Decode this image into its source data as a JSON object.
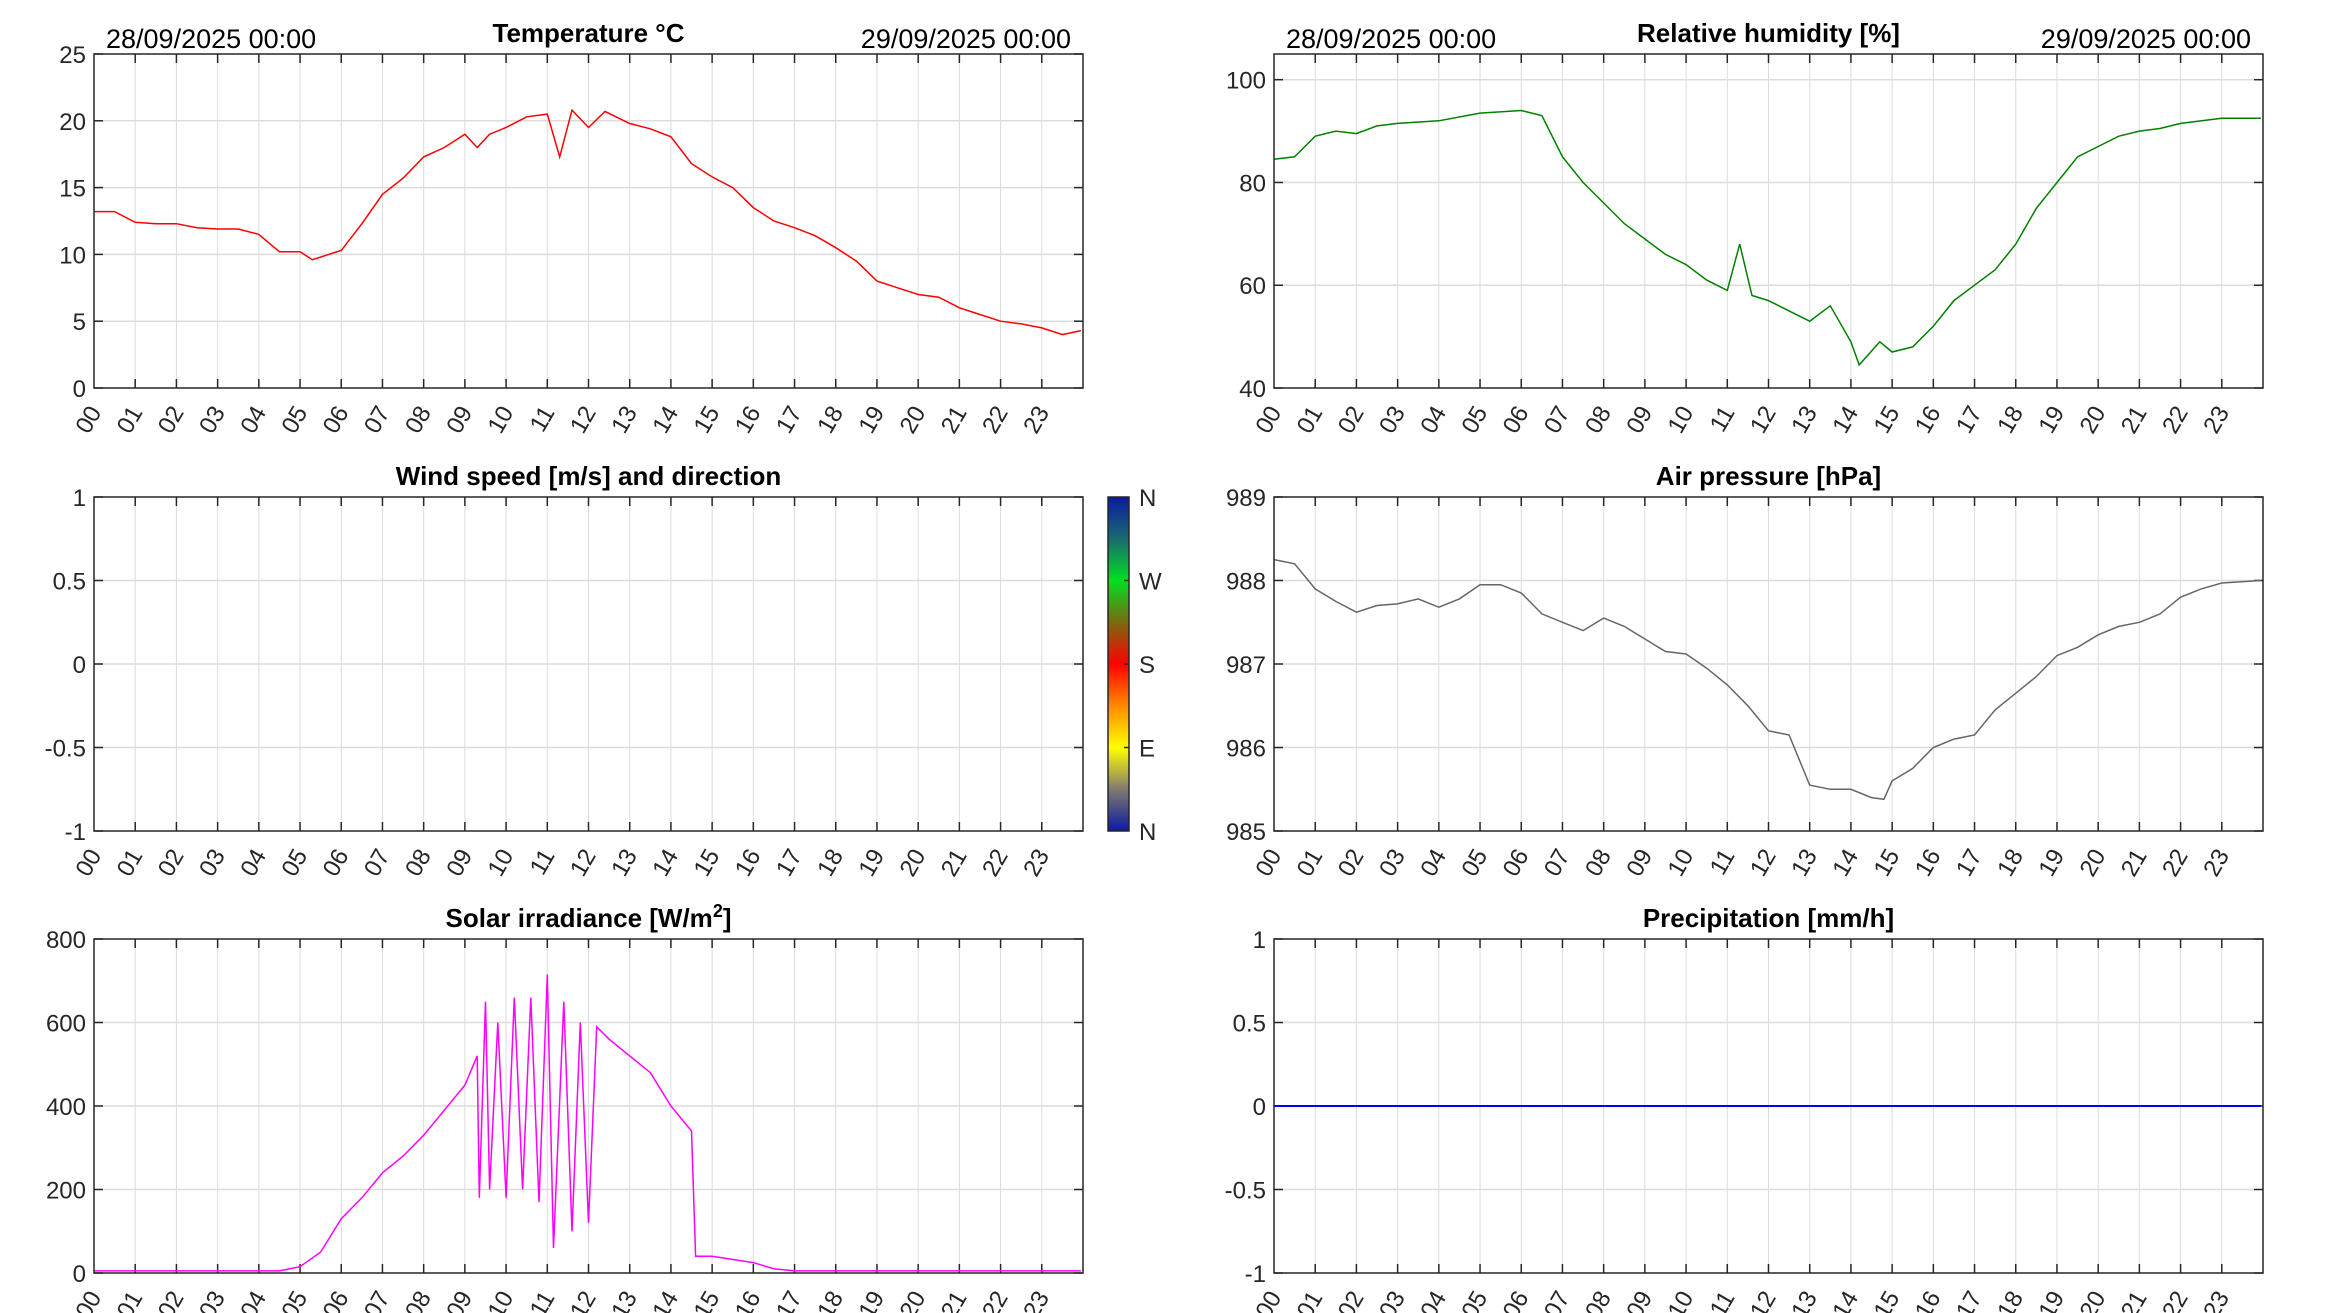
{
  "header": {
    "start_date": "28/09/2025 00:00",
    "end_date": "29/09/2025 00:00"
  },
  "hour_labels": [
    "00",
    "01",
    "02",
    "03",
    "04",
    "05",
    "06",
    "07",
    "08",
    "09",
    "10",
    "11",
    "12",
    "13",
    "14",
    "15",
    "16",
    "17",
    "18",
    "19",
    "20",
    "21",
    "22",
    "23"
  ],
  "colorbar": {
    "labels": [
      "N",
      "W",
      "S",
      "E",
      "N"
    ],
    "colors": [
      "#0a1aa0",
      "#1a6a70",
      "#00e020",
      "#7a6a10",
      "#ff0000",
      "#ff8800",
      "#ffff00",
      "#807a70",
      "#0a1aa0"
    ]
  },
  "chart_data": [
    {
      "id": "temperature",
      "type": "line",
      "title": "Temperature °C",
      "show_dates": true,
      "color": "#ff0000",
      "xlim": [
        0,
        24
      ],
      "ylim": [
        0,
        25
      ],
      "yticks": [
        0,
        5,
        10,
        15,
        20,
        25
      ],
      "ytick_labels": [
        "0",
        "5",
        "10",
        "15",
        "20",
        "25"
      ],
      "x": [
        0,
        0.5,
        1,
        1.5,
        2,
        2.5,
        3,
        3.5,
        4,
        4.5,
        5,
        5.3,
        6,
        6.5,
        7,
        7.5,
        8,
        8.5,
        9,
        9.3,
        9.6,
        10,
        10.5,
        11,
        11.3,
        11.6,
        12,
        12.4,
        13,
        13.5,
        14,
        14.5,
        15,
        15.5,
        16,
        16.5,
        17,
        17.5,
        18,
        18.5,
        19,
        19.5,
        20,
        20.5,
        21,
        21.5,
        22,
        22.5,
        23,
        23.5,
        23.95
      ],
      "y": [
        13.2,
        13.2,
        12.4,
        12.3,
        12.3,
        12.0,
        11.9,
        11.9,
        11.5,
        10.2,
        10.2,
        9.6,
        10.3,
        12.3,
        14.5,
        15.7,
        17.3,
        18.0,
        19.0,
        18.0,
        19.0,
        19.5,
        20.3,
        20.5,
        17.3,
        20.8,
        19.5,
        20.7,
        19.8,
        19.4,
        18.8,
        16.8,
        15.8,
        15.0,
        13.5,
        12.5,
        12.0,
        11.4,
        10.5,
        9.5,
        8.0,
        7.5,
        7.0,
        6.8,
        6.0,
        5.5,
        5.0,
        4.8,
        4.5,
        4.0,
        4.3
      ]
    },
    {
      "id": "humidity",
      "type": "line",
      "title": "Relative humidity [%]",
      "show_dates": true,
      "color": "#008000",
      "xlim": [
        0,
        24
      ],
      "ylim": [
        40,
        105
      ],
      "yticks": [
        40,
        60,
        80,
        100
      ],
      "ytick_labels": [
        "40",
        "60",
        "80",
        "100"
      ],
      "x": [
        0,
        0.5,
        1,
        1.5,
        2,
        2.5,
        3,
        4,
        5,
        6,
        6.5,
        7,
        7.5,
        8,
        8.5,
        9,
        9.5,
        10,
        10.5,
        11,
        11.3,
        11.6,
        12,
        12.5,
        13,
        13.5,
        14,
        14.2,
        14.7,
        15,
        15.5,
        16,
        16.5,
        17,
        17.5,
        18,
        18.5,
        19,
        19.5,
        20,
        20.5,
        21,
        21.5,
        22,
        23,
        23.95
      ],
      "y": [
        84.5,
        85,
        89,
        90,
        89.5,
        91,
        91.5,
        92,
        93.5,
        94,
        93,
        85,
        80,
        76,
        72,
        69,
        66,
        64,
        61,
        59,
        68,
        58,
        57,
        55,
        53,
        56,
        49,
        44.5,
        49,
        47,
        48,
        52,
        57,
        60,
        63,
        68,
        75,
        80,
        85,
        87,
        89,
        90,
        90.5,
        91.5,
        92.5,
        92.5
      ]
    },
    {
      "id": "wind",
      "type": "scatter",
      "title": "Wind speed [m/s] and direction",
      "show_dates": false,
      "color": "#000000",
      "xlim": [
        0,
        24
      ],
      "ylim": [
        -1,
        1
      ],
      "yticks": [
        -1,
        -0.5,
        0,
        0.5,
        1
      ],
      "ytick_labels": [
        "-1",
        "-0.5",
        "0",
        "0.5",
        "1"
      ],
      "x": [],
      "y": []
    },
    {
      "id": "pressure",
      "type": "line",
      "title": "Air pressure [hPa]",
      "show_dates": false,
      "color": "#666666",
      "xlim": [
        0,
        24
      ],
      "ylim": [
        985,
        989
      ],
      "yticks": [
        985,
        986,
        987,
        988,
        989
      ],
      "ytick_labels": [
        "985",
        "986",
        "987",
        "988",
        "989"
      ],
      "x": [
        0,
        0.5,
        1,
        1.5,
        2,
        2.5,
        3,
        3.5,
        4,
        4.5,
        5,
        5.5,
        6,
        6.5,
        7,
        7.5,
        8,
        8.5,
        9,
        9.5,
        10,
        10.5,
        11,
        11.5,
        12,
        12.5,
        13,
        13.5,
        14,
        14.5,
        14.8,
        15,
        15.5,
        16,
        16.5,
        17,
        17.5,
        18,
        18.5,
        19,
        19.5,
        20,
        20.5,
        21,
        21.5,
        22,
        22.5,
        23,
        23.95
      ],
      "y": [
        988.25,
        988.2,
        987.9,
        987.75,
        987.62,
        987.7,
        987.72,
        987.78,
        987.68,
        987.78,
        987.95,
        987.95,
        987.85,
        987.6,
        987.5,
        987.4,
        987.55,
        987.45,
        987.3,
        987.15,
        987.12,
        986.95,
        986.75,
        986.5,
        986.2,
        986.15,
        985.55,
        985.5,
        985.5,
        985.4,
        985.38,
        985.6,
        985.75,
        986.0,
        986.1,
        986.15,
        986.45,
        986.65,
        986.85,
        987.1,
        987.2,
        987.35,
        987.45,
        987.5,
        987.6,
        987.8,
        987.9,
        987.97,
        988.0
      ]
    },
    {
      "id": "solar",
      "type": "line",
      "title": "Solar irradiance [W/m",
      "title_sup": "2",
      "title_end": "]",
      "show_dates": false,
      "color": "#ff00ff",
      "xlim": [
        0,
        24
      ],
      "ylim": [
        0,
        800
      ],
      "yticks": [
        0,
        200,
        400,
        600,
        800
      ],
      "ytick_labels": [
        "0",
        "200",
        "400",
        "600",
        "800"
      ],
      "x": [
        0,
        4.5,
        5,
        5.5,
        6,
        6.5,
        7,
        7.5,
        8,
        8.5,
        9,
        9.3,
        9.35,
        9.5,
        9.6,
        9.8,
        10,
        10.2,
        10.4,
        10.6,
        10.8,
        11,
        11.15,
        11.4,
        11.6,
        11.8,
        12,
        12.2,
        12.5,
        13,
        13.5,
        14,
        14.5,
        14.6,
        15,
        16,
        16.5,
        17,
        23.95
      ],
      "y": [
        5,
        5,
        15,
        50,
        130,
        180,
        240,
        280,
        330,
        390,
        450,
        520,
        180,
        650,
        200,
        600,
        180,
        660,
        200,
        660,
        170,
        715,
        60,
        650,
        100,
        600,
        120,
        590,
        560,
        520,
        480,
        400,
        340,
        40,
        40,
        25,
        10,
        5,
        5
      ]
    },
    {
      "id": "precipitation",
      "type": "line",
      "title": "Precipitation [mm/h]",
      "show_dates": false,
      "color": "#0000ff",
      "xlim": [
        0,
        24
      ],
      "ylim": [
        -1,
        1
      ],
      "yticks": [
        -1,
        -0.5,
        0,
        0.5,
        1
      ],
      "ytick_labels": [
        "-1",
        "-0.5",
        "0",
        "0.5",
        "1"
      ],
      "x": [
        0,
        23.95
      ],
      "y": [
        0,
        0
      ]
    }
  ]
}
